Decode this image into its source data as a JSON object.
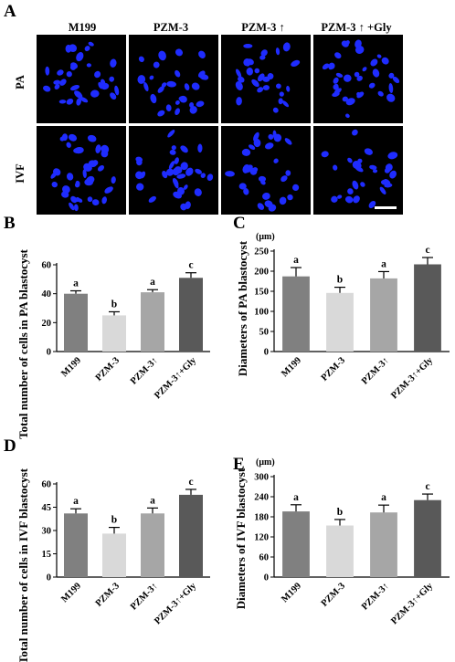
{
  "panel_a": {
    "letter": "A",
    "columns": [
      "M199",
      "PZM-3",
      "PZM-3 ↑",
      "PZM-3 ↑ +Gly"
    ],
    "rows": [
      "PA",
      "IVF"
    ],
    "nuclei_color": "#1f2cff",
    "background_color": "#000000"
  },
  "chart_data": [
    {
      "letter": "B",
      "type": "bar",
      "categories": [
        "M199",
        "PZM-3",
        "PZM-3↑",
        "PZM-3↑+Gly"
      ],
      "values": [
        40,
        25,
        41,
        51
      ],
      "errors": [
        2,
        2.5,
        1.8,
        3.5
      ],
      "significance": [
        "a",
        "b",
        "a",
        "c"
      ],
      "ylabel": "Total number of cells in PA blastocyst",
      "unit": "",
      "ylim": [
        0,
        60
      ],
      "yticks": [
        0,
        20,
        40,
        60
      ],
      "colors": [
        "#808080",
        "#d9d9d9",
        "#a6a6a6",
        "#595959"
      ]
    },
    {
      "letter": "C",
      "type": "bar",
      "categories": [
        "M199",
        "PZM-3",
        "PZM-3↑",
        "PZM-3↑+Gly"
      ],
      "values": [
        187,
        146,
        182,
        217
      ],
      "errors": [
        22,
        14,
        17,
        17
      ],
      "significance": [
        "a",
        "b",
        "a",
        "c"
      ],
      "ylabel": "Diameters of PA blastocyst",
      "unit": "(μm)",
      "ylim": [
        0,
        250
      ],
      "yticks": [
        0,
        50,
        100,
        150,
        200,
        250
      ],
      "colors": [
        "#808080",
        "#d9d9d9",
        "#a6a6a6",
        "#595959"
      ]
    },
    {
      "letter": "D",
      "type": "bar",
      "categories": [
        "M199",
        "PZM-3",
        "PZM-3↑",
        "PZM-3↑+Gly"
      ],
      "values": [
        41,
        28,
        41,
        53
      ],
      "errors": [
        3,
        4,
        3.5,
        3.5
      ],
      "significance": [
        "a",
        "b",
        "a",
        "c"
      ],
      "ylabel": "Total number of cells in IVF blastocyst",
      "unit": "",
      "ylim": [
        0,
        60
      ],
      "yticks": [
        0,
        15,
        30,
        45,
        60
      ],
      "colors": [
        "#808080",
        "#d9d9d9",
        "#a6a6a6",
        "#595959"
      ]
    },
    {
      "letter": "E",
      "type": "bar",
      "categories": [
        "M199",
        "PZM-3",
        "PZM-3↑",
        "PZM-3↑+Gly"
      ],
      "values": [
        196,
        154,
        193,
        230
      ],
      "errors": [
        20,
        18,
        22,
        18
      ],
      "significance": [
        "a",
        "b",
        "a",
        "c"
      ],
      "ylabel": "Diameters of IVF blastocyst",
      "unit": "(μm)",
      "ylim": [
        0,
        300
      ],
      "yticks": [
        0,
        60,
        120,
        180,
        240,
        300
      ],
      "colors": [
        "#808080",
        "#d9d9d9",
        "#a6a6a6",
        "#595959"
      ]
    }
  ]
}
